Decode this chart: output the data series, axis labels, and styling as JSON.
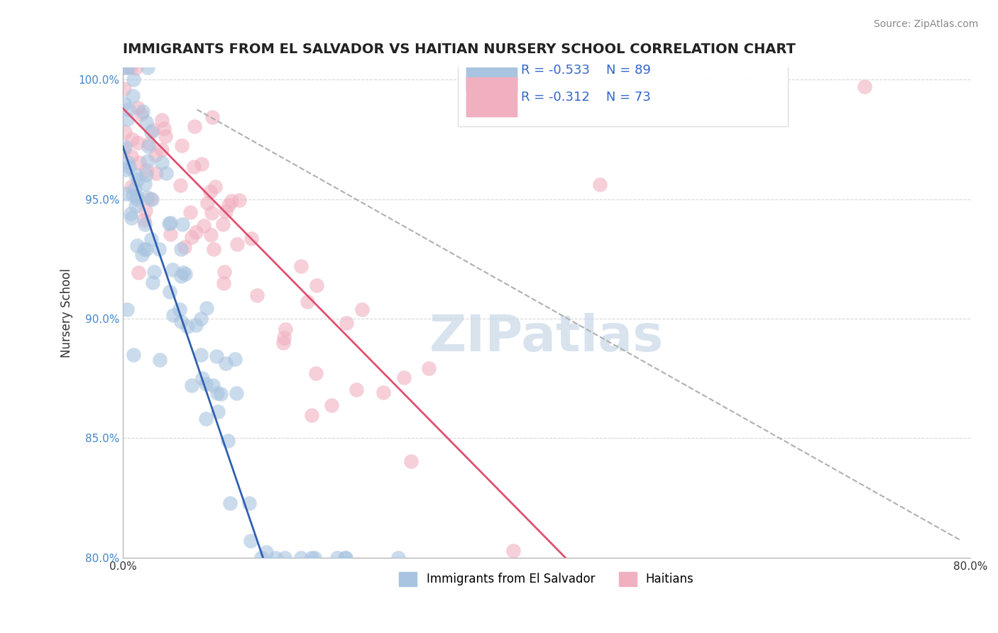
{
  "title": "IMMIGRANTS FROM EL SALVADOR VS HAITIAN NURSERY SCHOOL CORRELATION CHART",
  "source_text": "Source: ZipAtlas.com",
  "xlabel": "",
  "ylabel": "Nursery School",
  "x_min": 0.0,
  "x_max": 0.8,
  "y_min": 0.8,
  "y_max": 1.005,
  "x_ticks": [
    0.0,
    0.1,
    0.2,
    0.3,
    0.4,
    0.5,
    0.6,
    0.7,
    0.8
  ],
  "x_tick_labels": [
    "0.0%",
    "",
    "",
    "",
    "",
    "",
    "",
    "",
    "80.0%"
  ],
  "y_ticks": [
    0.8,
    0.85,
    0.9,
    0.95,
    1.0
  ],
  "y_tick_labels": [
    "80.0%",
    "85.0%",
    "90.0%",
    "95.0%",
    "100.0%"
  ],
  "blue_R": -0.533,
  "blue_N": 89,
  "pink_R": -0.312,
  "pink_N": 73,
  "blue_color": "#a8c4e0",
  "pink_color": "#f0b0c0",
  "blue_line_color": "#3060b0",
  "pink_line_color": "#e05070",
  "dashed_line_color": "#b0b0b0",
  "watermark_text": "ZIPatlas",
  "watermark_color": "#c8d8e8",
  "legend_blue_label": "Immigrants from El Salvador",
  "legend_pink_label": "Haitians",
  "background_color": "#ffffff",
  "grid_color": "#d8d8d8"
}
